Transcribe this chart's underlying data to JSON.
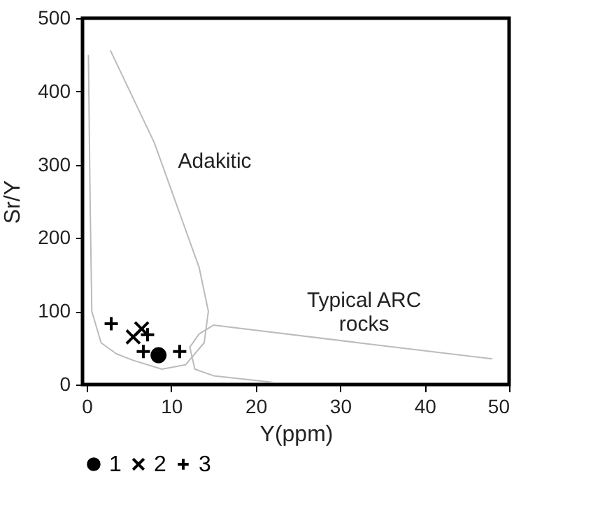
{
  "chart_data": {
    "type": "scatter",
    "xlabel": "Y(ppm)",
    "ylabel": "Sr/Y",
    "xlim": [
      -0.5,
      50
    ],
    "ylim": [
      0,
      500
    ],
    "xticks": [
      0,
      10,
      20,
      30,
      40,
      50
    ],
    "yticks": [
      0,
      100,
      200,
      300,
      400,
      500
    ],
    "grid": false,
    "legend": "bottom",
    "series": [
      {
        "name": "1",
        "color": "#000000",
        "marker": "circle",
        "x": [
          8.5
        ],
        "values": [
          40
        ]
      },
      {
        "name": "2",
        "color": "#000000",
        "marker": "cross",
        "x": [
          6.5,
          5.5
        ],
        "values": [
          76,
          65
        ]
      },
      {
        "name": "3",
        "color": "#000000",
        "marker": "plus",
        "x": [
          2.9,
          7.2,
          6.7,
          11
        ],
        "values": [
          83,
          68,
          45,
          45
        ]
      },
      {
        "type": "line",
        "color": "#bbbbbb",
        "x": [
          0.2,
          0.4,
          0.6,
          1.7,
          3.5,
          5.5,
          8.9,
          11.7,
          13.9,
          14.4,
          13.3,
          8,
          2.8
        ],
        "values": [
          450,
          250,
          100,
          57,
          42,
          33,
          21,
          27,
          57,
          100,
          160,
          330,
          456
        ]
      },
      {
        "type": "line",
        "color": "#bbbbbb",
        "x": [
          22,
          15,
          12.8,
          12.2,
          13.3,
          15,
          48
        ],
        "values": [
          3,
          12,
          21,
          51,
          69,
          81,
          35
        ]
      }
    ],
    "annotations": [
      "Adakitic",
      "Typical ARC\nrocks"
    ]
  }
}
